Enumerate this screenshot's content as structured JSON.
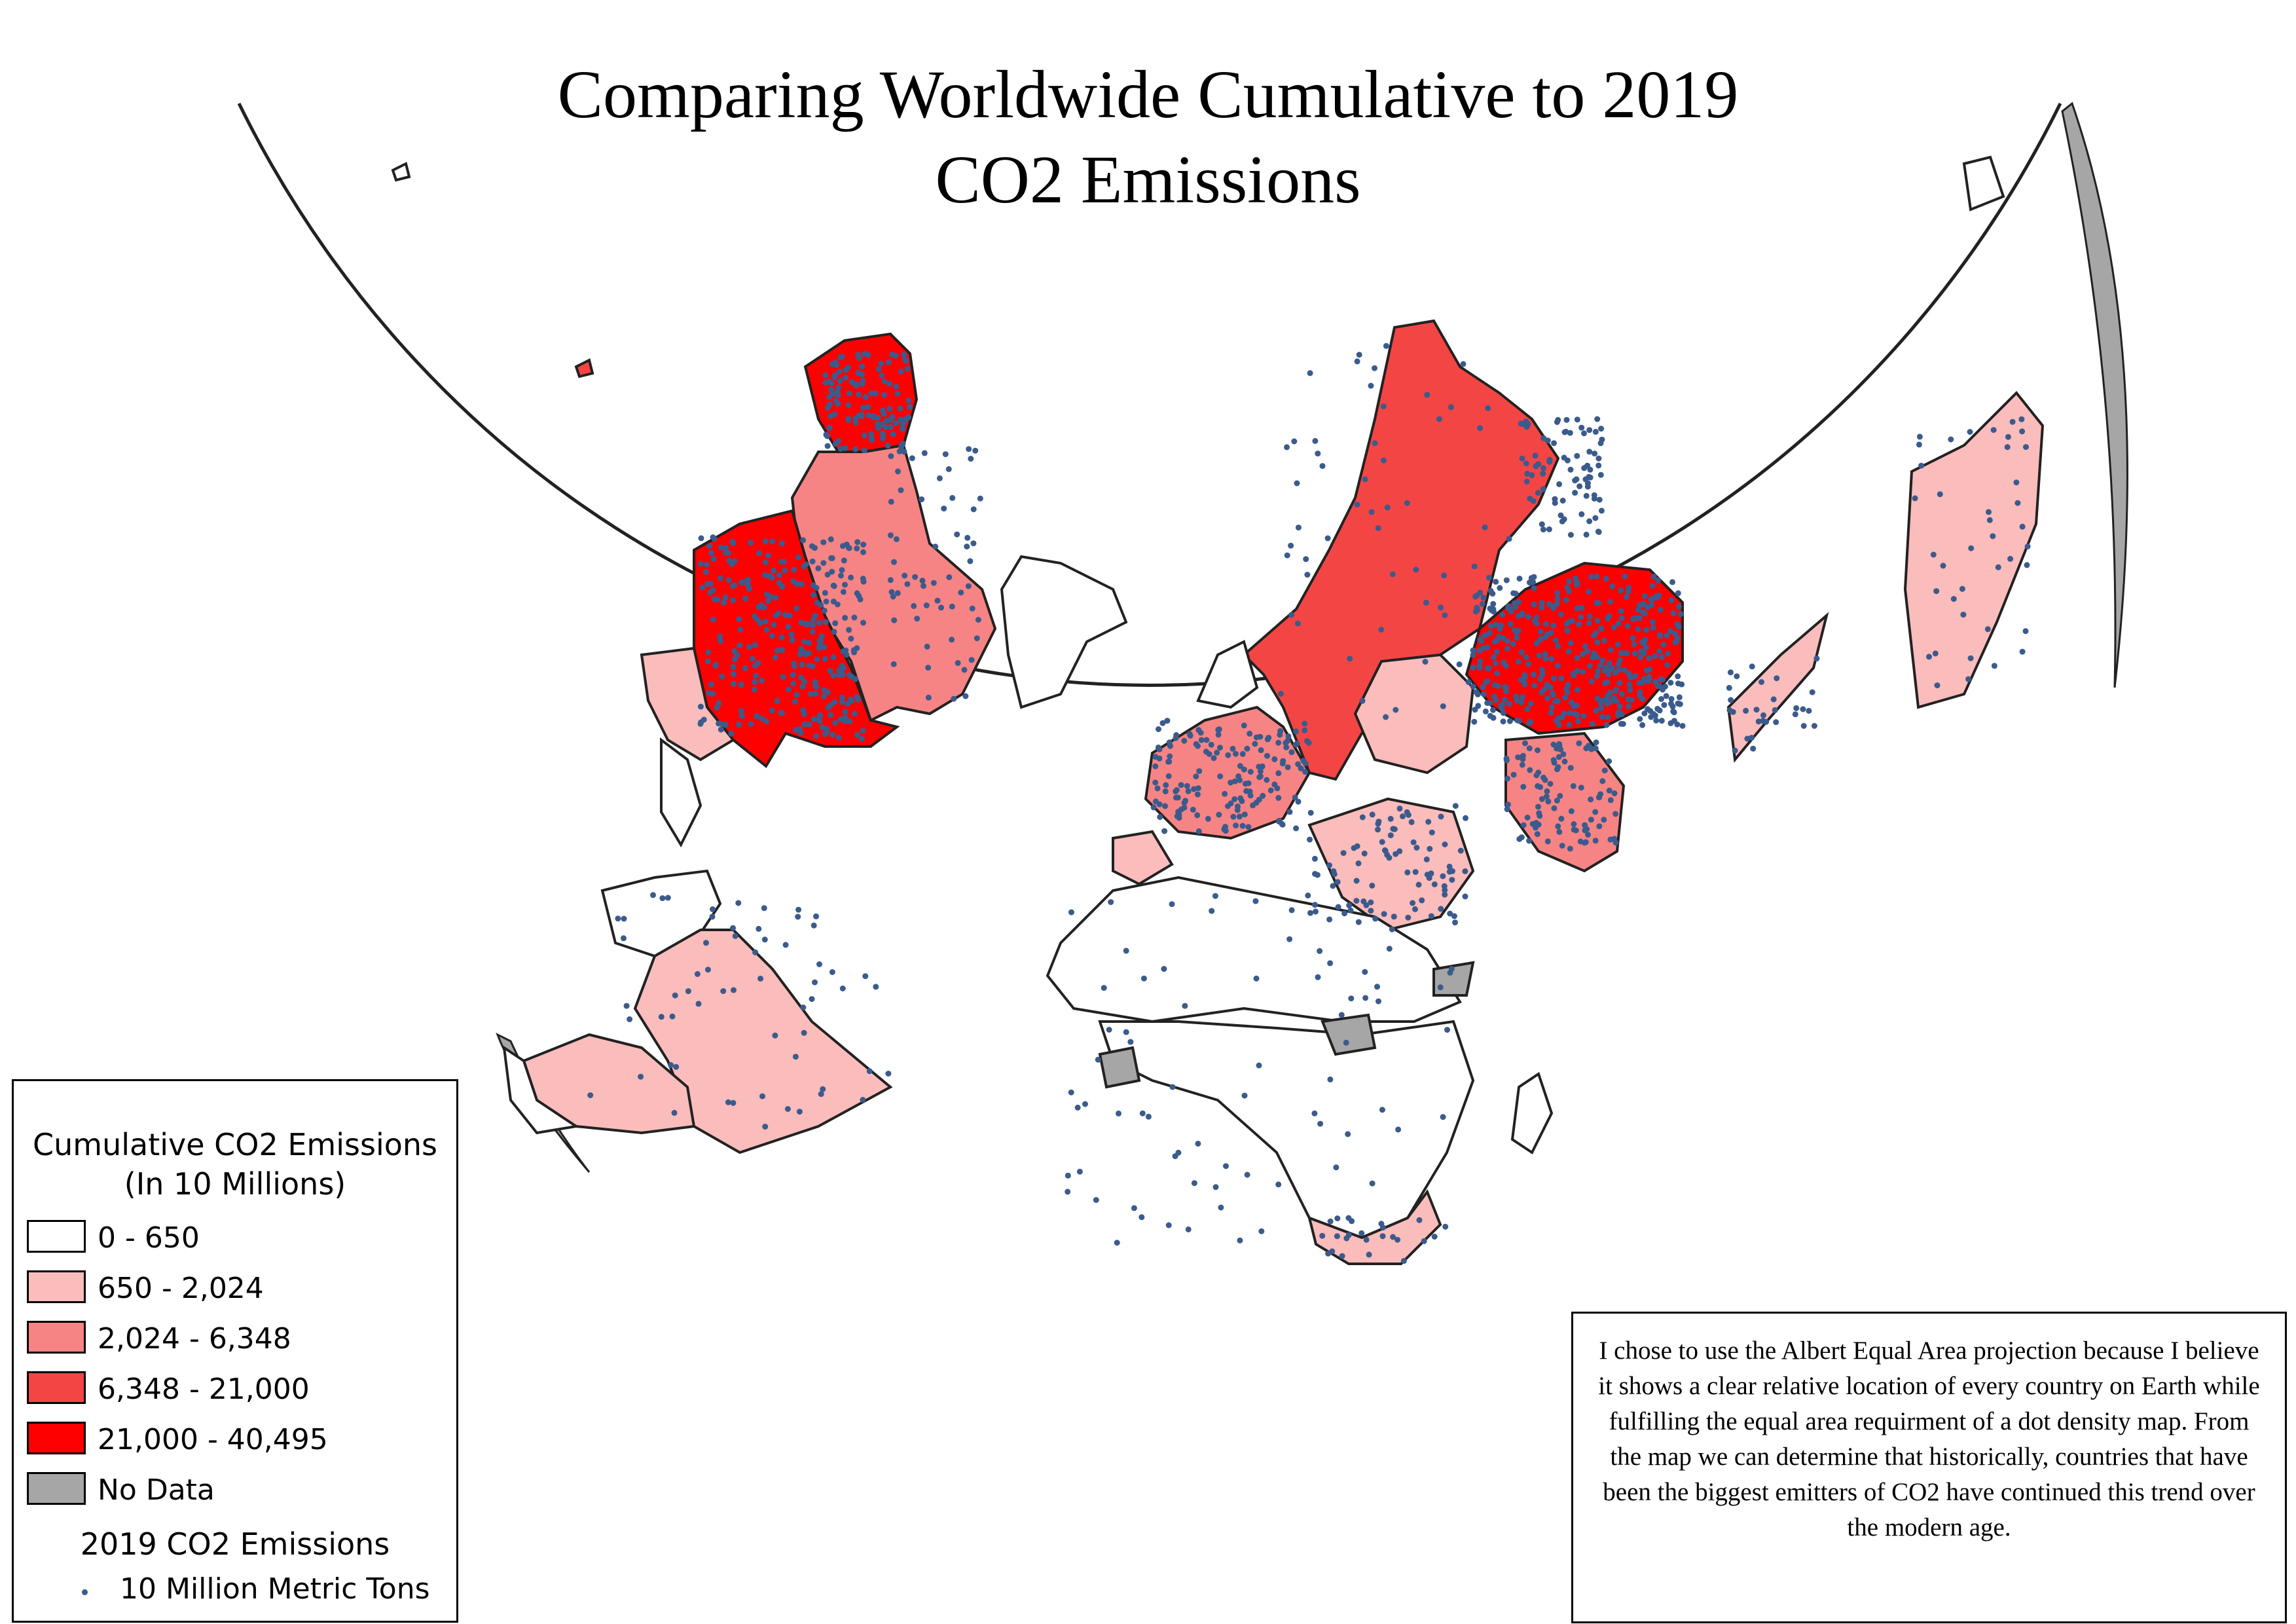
{
  "title": {
    "line1": "Comparing Worldwide Cumulative to 2019",
    "line2": "CO2 Emissions"
  },
  "legend": {
    "title_line1": "Cumulative CO2 Emissions",
    "title_line2": "(In 10 Millions)",
    "classes": [
      {
        "label": "0 - 650",
        "color": "#ffffff"
      },
      {
        "label": "650 - 2,024",
        "color": "#fbbcbc"
      },
      {
        "label": "2,024 - 6,348",
        "color": "#f78484"
      },
      {
        "label": "6,348 - 21,000",
        "color": "#f44545"
      },
      {
        "label": "21,000 - 40,495",
        "color": "#ff0000"
      },
      {
        "label": "No Data",
        "color": "#a6a6a6"
      }
    ],
    "dot_title": "2019 CO2 Emissions",
    "dot_label": "10 Million Metric Tons",
    "dot_color": "#3b5b8c"
  },
  "note": {
    "text": "I chose to use the Albert Equal Area projection because I believe it shows a clear relative location of every country on Earth while fulfilling the equal area requirment of a dot density map. From the map we can determine that historically, countries that have been the biggest emitters of CO2 have continued this trend over the modern age."
  }
}
